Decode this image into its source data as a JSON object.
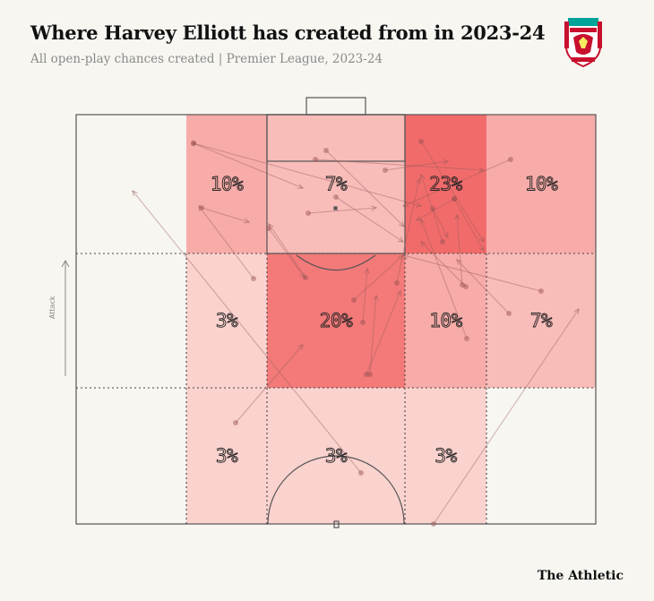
{
  "header": {
    "title": "Where Harvey Elliott has created from in 2023-24",
    "subtitle": "All open-play chances created | Premier League, 2023-24"
  },
  "crest": {
    "text": "LIVERPOOL",
    "colors": {
      "primary": "#c8102e",
      "secondary": "#00a398",
      "gold": "#f6eb61"
    }
  },
  "attack_label": "Attack",
  "brand": "The Athletic",
  "chart_data": {
    "type": "heatmap",
    "title": "Where Harvey Elliott has created from in 2023-24",
    "subtitle": "All open-play chances created | Premier League, 2023-24",
    "orientation": "attack upward",
    "zones": [
      {
        "row": 0,
        "col": 1,
        "label": "10%",
        "value": 10
      },
      {
        "row": 0,
        "col": 2,
        "label": "7%",
        "value": 7
      },
      {
        "row": 0,
        "col": 3,
        "label": "23%",
        "value": 23
      },
      {
        "row": 0,
        "col": 4,
        "label": "10%",
        "value": 10
      },
      {
        "row": 1,
        "col": 1,
        "label": "3%",
        "value": 3
      },
      {
        "row": 1,
        "col": 2,
        "label": "20%",
        "value": 20
      },
      {
        "row": 1,
        "col": 3,
        "label": "10%",
        "value": 10
      },
      {
        "row": 1,
        "col": 4,
        "label": "7%",
        "value": 7
      },
      {
        "row": 2,
        "col": 1,
        "label": "3%",
        "value": 3
      },
      {
        "row": 2,
        "col": 2,
        "label": "3%",
        "value": 3
      },
      {
        "row": 2,
        "col": 3,
        "label": "3%",
        "value": 3
      }
    ],
    "color_scale": [
      "#fbe6e1",
      "#f26b6b"
    ],
    "pass_count": 30
  }
}
